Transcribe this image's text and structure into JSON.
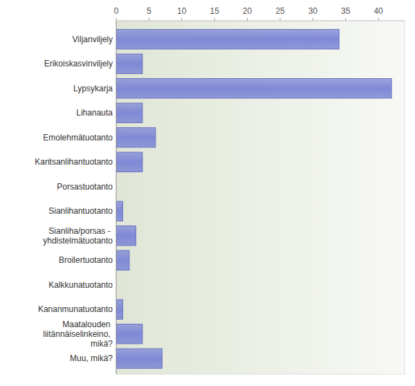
{
  "chart_data": {
    "type": "bar",
    "orientation": "horizontal",
    "categories": [
      "Viljanviljely",
      "Erikoiskasvinviljely",
      "Lypsykarja",
      "Lihanauta",
      "Emolehmätuotanto",
      "Karitsanlihantuotanto",
      "Porsastuotanto",
      "Sianlihantuotanto",
      "Sianliha/porsas - yhdistelmätuotanto",
      "Broilertuotanto",
      "Kalkkunatuotanto",
      "Kananmunatuotanto",
      "Maatalouden liitännäiselinkeino, mikä?",
      "Muu, mikä?"
    ],
    "values": [
      34,
      4,
      42,
      4,
      6,
      4,
      0,
      1,
      3,
      2,
      0,
      1,
      4,
      7
    ],
    "color": "#7f89d6",
    "xlim": [
      0,
      44
    ],
    "xticks": [
      0,
      5,
      10,
      15,
      20,
      25,
      30,
      35,
      40
    ],
    "grid": false
  }
}
